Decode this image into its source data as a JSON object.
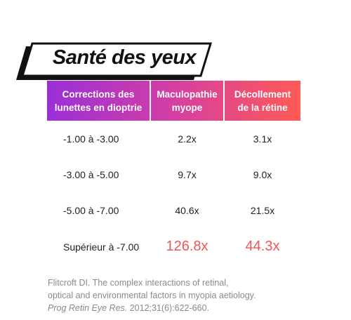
{
  "title": "Santé des yeux",
  "table": {
    "headers": [
      [
        "Corrections des",
        "lunettes en dioptrie"
      ],
      [
        "Maculopathie",
        "myope"
      ],
      [
        "Décollement",
        "de la rétine"
      ]
    ],
    "rows": [
      [
        "-1.00 à -3.00",
        "2.2x",
        "3.1x"
      ],
      [
        "-3.00 à -5.00",
        "9.7x",
        "9.0x"
      ],
      [
        "-5.00 à -7.00",
        "40.6x",
        "21.5x"
      ],
      [
        "Supérieur à -7.00",
        "126.8x",
        "44.3x"
      ]
    ]
  },
  "citation": {
    "lines": [
      "Flitcroft DI. The complex interactions of retinal,",
      "optical and environmental factors in myopia aetiology."
    ],
    "journal": "Prog Retin Eye Res.",
    "details": " 2012;31(6):622-660."
  }
}
